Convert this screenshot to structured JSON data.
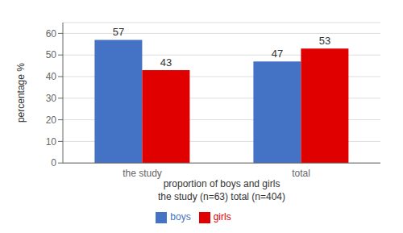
{
  "chart_data": {
    "type": "bar",
    "categories": [
      "the study",
      "total"
    ],
    "series": [
      {
        "name": "boys",
        "color": "#4472C4",
        "values": [
          57,
          47
        ]
      },
      {
        "name": "girls",
        "color": "#E00000",
        "values": [
          43,
          53
        ]
      }
    ],
    "ylabel": "percentage %",
    "xlabel": [
      "proportion of boys and girls",
      "the study (n=63) total (n=404)"
    ],
    "ylim": [
      0,
      65
    ],
    "yticks": [
      0,
      10,
      20,
      30,
      40,
      50,
      60
    ],
    "grid": true,
    "legend": "bottom",
    "data_labels": true
  }
}
